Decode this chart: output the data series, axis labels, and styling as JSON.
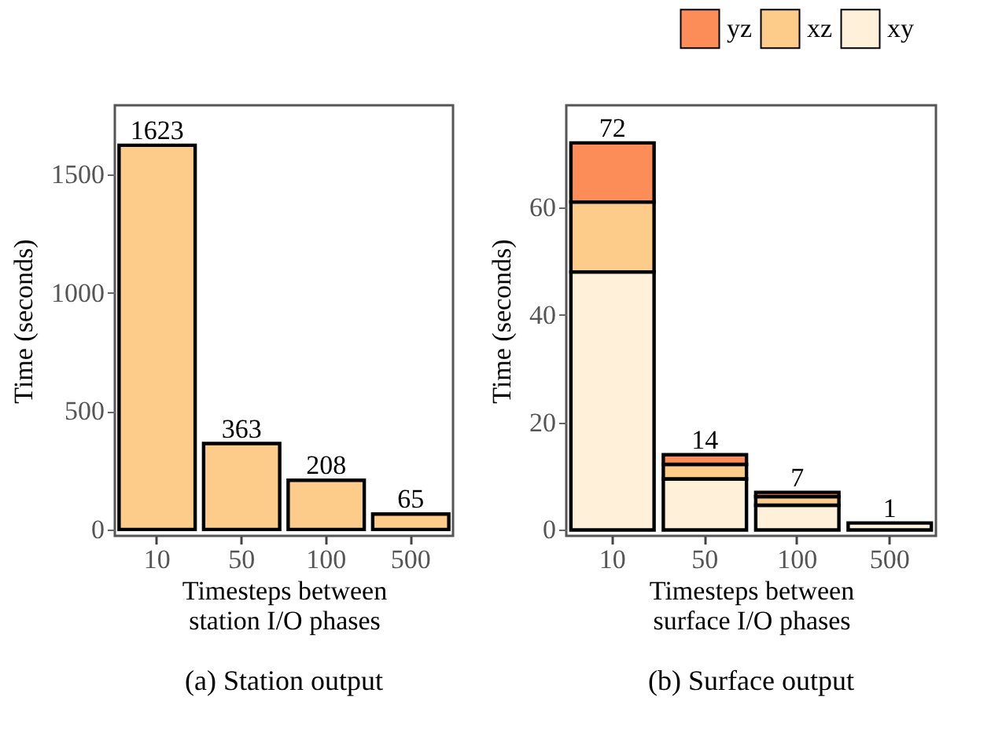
{
  "chart_data": [
    {
      "type": "bar",
      "title": "(a) Station output",
      "xlabel": "Timesteps between\nstation I/O phases",
      "ylabel": "Time (seconds)",
      "categories": [
        "10",
        "50",
        "100",
        "500"
      ],
      "values": [
        1623,
        363,
        208,
        65
      ],
      "color": "#fdcc8a",
      "data_labels": true,
      "ylim": [
        -27,
        1792
      ],
      "yticks": [
        0,
        500,
        1000,
        1500
      ],
      "grid": false
    },
    {
      "type": "bar",
      "title": "(b) Surface output",
      "xlabel": "Timesteps between\nsurface I/O phases",
      "ylabel": "Time (seconds)",
      "categories": [
        "10",
        "50",
        "100",
        "500"
      ],
      "stacked": true,
      "series": [
        {
          "name": "xy",
          "color": "#fef0d9",
          "values": [
            48,
            9.5,
            4.6,
            1.3
          ]
        },
        {
          "name": "xz",
          "color": "#fdcc8a",
          "values": [
            13,
            2.7,
            1.6,
            null
          ]
        },
        {
          "name": "yz",
          "color": "#fc8d59",
          "values": [
            11,
            1.8,
            0.8,
            null
          ]
        }
      ],
      "totals": [
        "72",
        "14",
        "7",
        "1"
      ],
      "ylim": [
        -1.1,
        79
      ],
      "yticks": [
        0,
        20,
        40,
        60
      ],
      "grid": false,
      "legend": "top right"
    }
  ]
}
